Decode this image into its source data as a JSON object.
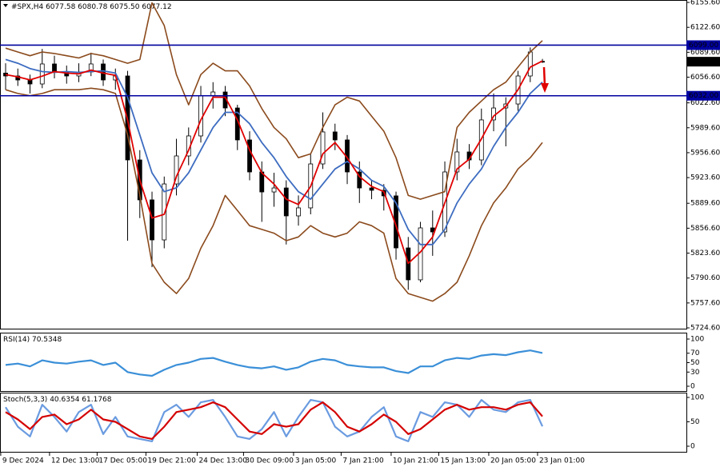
{
  "chart_data": [
    {
      "type": "candlestick",
      "title": "#SPX,H4",
      "last_bar_labels": [
        "6077.58",
        "6080.78",
        "6075.50",
        "6077.12"
      ],
      "x": [
        0,
        1,
        2,
        3,
        4,
        5,
        6,
        7,
        8,
        9,
        10,
        11,
        12,
        13,
        14,
        15,
        16,
        17,
        18,
        19,
        20,
        21,
        22,
        23,
        24,
        25,
        26,
        27,
        28,
        29,
        30,
        31,
        32,
        33,
        34,
        35,
        36,
        37,
        38,
        39,
        40,
        41,
        42,
        43,
        44
      ],
      "open": [
        6062.0,
        6058.2,
        6052.9,
        6047.6,
        6074.1,
        6063.5,
        6058.2,
        6063.5,
        6074.1,
        6052.9,
        6058.2,
        5947.0,
        5894.1,
        5841.1,
        5915.2,
        5952.3,
        5978.8,
        6031.7,
        6037.0,
        6015.8,
        5973.5,
        5931.1,
        5904.6,
        5909.9,
        5872.9,
        5883.5,
        5941.7,
        5984.1,
        5973.5,
        5931.1,
        5909.9,
        5906.8,
        5899.4,
        5830.5,
        5788.2,
        5857.0,
        5851.7,
        5931.1,
        5957.6,
        5947.0,
        6000.0,
        6015.8,
        6021.1,
        6058.2,
        6077.58
      ],
      "high": [
        6075,
        6068,
        6060,
        6094,
        6085,
        6072,
        6075,
        6089,
        6080,
        6068,
        6065,
        5960,
        5905,
        5925,
        5975,
        5990,
        6045,
        6050,
        6045,
        6020,
        5985,
        5945,
        5930,
        5920,
        5900,
        5955,
        6010,
        5995,
        5980,
        5945,
        5920,
        5915,
        5905,
        5845,
        5865,
        5880,
        5945,
        5975,
        5968,
        6015,
        6035,
        6030,
        6065,
        6096,
        6080.78
      ],
      "low": [
        6040,
        6045,
        6035,
        6042,
        6055,
        6048,
        6050,
        6058,
        6045,
        6040,
        5840,
        5870,
        5805,
        5830,
        5900,
        5940,
        5970,
        6015,
        6005,
        5960,
        5920,
        5865,
        5885,
        5835,
        5860,
        5875,
        5935,
        5960,
        5915,
        5890,
        5895,
        5880,
        5815,
        5775,
        5785,
        5820,
        5845,
        5920,
        5935,
        5940,
        5985,
        5965,
        6012,
        6050,
        6075.5
      ],
      "close": [
        6058.2,
        6052.9,
        6047.6,
        6074.1,
        6063.5,
        6058.2,
        6063.5,
        6074.1,
        6052.9,
        6058.2,
        5947.0,
        5894.1,
        5841.1,
        5915.2,
        5952.3,
        5978.8,
        6031.7,
        6037.0,
        6015.8,
        5973.5,
        5931.1,
        5904.6,
        5909.9,
        5872.9,
        5883.5,
        5941.7,
        5984.1,
        5973.5,
        5931.1,
        5909.9,
        5906.8,
        5899.4,
        5830.5,
        5788.2,
        5857.0,
        5851.7,
        5931.1,
        5957.6,
        5947.0,
        6000.0,
        6015.8,
        6021.1,
        6058.2,
        6090.0,
        6077.12
      ],
      "up_color": "#ffffff",
      "down_color": "#000000",
      "wick_color": "#000000",
      "lines": [
        {
          "color": "#8b4a1c",
          "values": [
            6095,
            6090,
            6085,
            6090,
            6088,
            6085,
            6082,
            6088,
            6085,
            6080,
            6075,
            6080,
            6155,
            6125,
            6060,
            6020,
            6060,
            6075,
            6065,
            6065,
            6045,
            6015,
            5990,
            5975,
            5950,
            5955,
            5990,
            6020,
            6030,
            6025,
            6005,
            5985,
            5950,
            5900,
            5895,
            5900,
            5905,
            5990,
            6010,
            6025,
            6040,
            6050,
            6070,
            6090,
            6105
          ]
        },
        {
          "color": "#8b4a1c",
          "values": [
            6040,
            6035,
            6032,
            6035,
            6040,
            6040,
            6040,
            6042,
            6040,
            6035,
            5980,
            5900,
            5810,
            5785,
            5770,
            5790,
            5830,
            5860,
            5900,
            5880,
            5860,
            5855,
            5850,
            5840,
            5845,
            5860,
            5850,
            5845,
            5850,
            5865,
            5860,
            5850,
            5790,
            5770,
            5765,
            5760,
            5770,
            5785,
            5820,
            5860,
            5890,
            5910,
            5935,
            5950,
            5970
          ]
        },
        {
          "color": "#3d6cc0",
          "values": [
            6080,
            6075,
            6068,
            6064,
            6063,
            6064,
            6063,
            6064,
            6065,
            6062,
            6030,
            5980,
            5930,
            5905,
            5910,
            5930,
            5960,
            5990,
            6010,
            6010,
            5995,
            5970,
            5950,
            5925,
            5905,
            5895,
            5915,
            5935,
            5945,
            5935,
            5920,
            5912,
            5890,
            5855,
            5835,
            5835,
            5855,
            5890,
            5915,
            5935,
            5965,
            5990,
            6010,
            6035,
            6050
          ]
        },
        {
          "color": "#e00000",
          "values": [
            6060,
            6057,
            6053,
            6058,
            6064,
            6062,
            6061,
            6066,
            6062,
            6059,
            6000,
            5920,
            5870,
            5875,
            5925,
            5960,
            6000,
            6030,
            6030,
            6000,
            5960,
            5930,
            5915,
            5895,
            5888,
            5912,
            5955,
            5970,
            5950,
            5925,
            5912,
            5905,
            5860,
            5810,
            5825,
            5845,
            5890,
            5935,
            5948,
            5975,
            6005,
            6018,
            6040,
            6070,
            6078
          ]
        }
      ],
      "levels": [
        {
          "value": 6099,
          "label": "6099.00"
        },
        {
          "value": 6032,
          "label": "6032.00"
        }
      ],
      "level_color": "#0000a0",
      "xlim": [
        -0.46,
        55.8
      ],
      "xticks": [
        {
          "value": -0.4,
          "label": "9 Dec 2024"
        },
        {
          "value": 3.6,
          "label": "12 Dec 13:00"
        },
        {
          "value": 7.5,
          "label": "17 Dec 05:00"
        },
        {
          "value": 11.5,
          "label": "19 Dec 21:00"
        },
        {
          "value": 15.7,
          "label": "24 Dec 13:00"
        },
        {
          "value": 19.5,
          "label": "30 Dec 09:00"
        },
        {
          "value": 23.6,
          "label": "3 Jan 05:00"
        },
        {
          "value": 27.5,
          "label": "7 Jan 21:00"
        },
        {
          "value": 31.6,
          "label": "10 Jan 21:00"
        },
        {
          "value": 35.5,
          "label": "15 Jan 13:00"
        },
        {
          "value": 39.6,
          "label": "20 Jan 05:00"
        },
        {
          "value": 43.6,
          "label": "23 Jan 01:00"
        }
      ],
      "ylim": [
        5722.5,
        6158.8
      ],
      "yticks": [
        {
          "value": 6155.6,
          "label": "6155.60"
        },
        {
          "value": 6122.6,
          "label": "6122.60"
        },
        {
          "value": 6089.6,
          "label": "6089.60"
        },
        {
          "value": 6056.6,
          "label": "6056.60"
        },
        {
          "value": 6022.6,
          "label": "6022.60"
        },
        {
          "value": 5989.6,
          "label": "5989.60"
        },
        {
          "value": 5956.6,
          "label": "5956.60"
        },
        {
          "value": 5923.6,
          "label": "5923.60"
        },
        {
          "value": 5889.6,
          "label": "5889.60"
        },
        {
          "value": 5856.6,
          "label": "5856.60"
        },
        {
          "value": 5823.6,
          "label": "5823.60"
        },
        {
          "value": 5790.6,
          "label": "5790.60"
        },
        {
          "value": 5757.6,
          "label": "5757.60"
        },
        {
          "value": 5724.6,
          "label": "5724.60"
        }
      ]
    },
    {
      "type": "line",
      "title": "RSI(14)",
      "series": [
        {
          "color": "#3a8fd8",
          "values": [
            45,
            48,
            42,
            55,
            50,
            48,
            52,
            55,
            45,
            50,
            30,
            25,
            22,
            35,
            45,
            50,
            58,
            60,
            52,
            45,
            40,
            38,
            42,
            35,
            40,
            52,
            58,
            55,
            45,
            42,
            40,
            40,
            32,
            28,
            42,
            42,
            55,
            60,
            58,
            65,
            68,
            66,
            72,
            76,
            70.5348
          ]
        }
      ],
      "ylim": [
        0,
        100
      ],
      "yticks": [
        0,
        30,
        50,
        70,
        100
      ]
    },
    {
      "type": "line",
      "title": "Stoch(5,3,3)",
      "series": [
        {
          "color": "#6a9be0",
          "values": [
            80,
            40,
            20,
            85,
            60,
            30,
            70,
            85,
            25,
            60,
            20,
            15,
            10,
            70,
            85,
            60,
            90,
            95,
            60,
            20,
            15,
            35,
            70,
            20,
            60,
            95,
            90,
            40,
            20,
            30,
            60,
            80,
            20,
            10,
            70,
            60,
            90,
            85,
            60,
            95,
            75,
            70,
            90,
            95,
            40.6354
          ]
        },
        {
          "color": "#d40000",
          "values": [
            70,
            55,
            35,
            60,
            65,
            45,
            55,
            75,
            55,
            50,
            35,
            20,
            15,
            40,
            70,
            75,
            80,
            90,
            80,
            55,
            30,
            25,
            45,
            40,
            45,
            75,
            90,
            70,
            40,
            30,
            45,
            65,
            50,
            25,
            35,
            55,
            75,
            85,
            75,
            80,
            80,
            75,
            85,
            90,
            61.1768
          ]
        }
      ],
      "ylim": [
        0,
        100
      ],
      "yticks": [
        0,
        50,
        100
      ]
    }
  ]
}
